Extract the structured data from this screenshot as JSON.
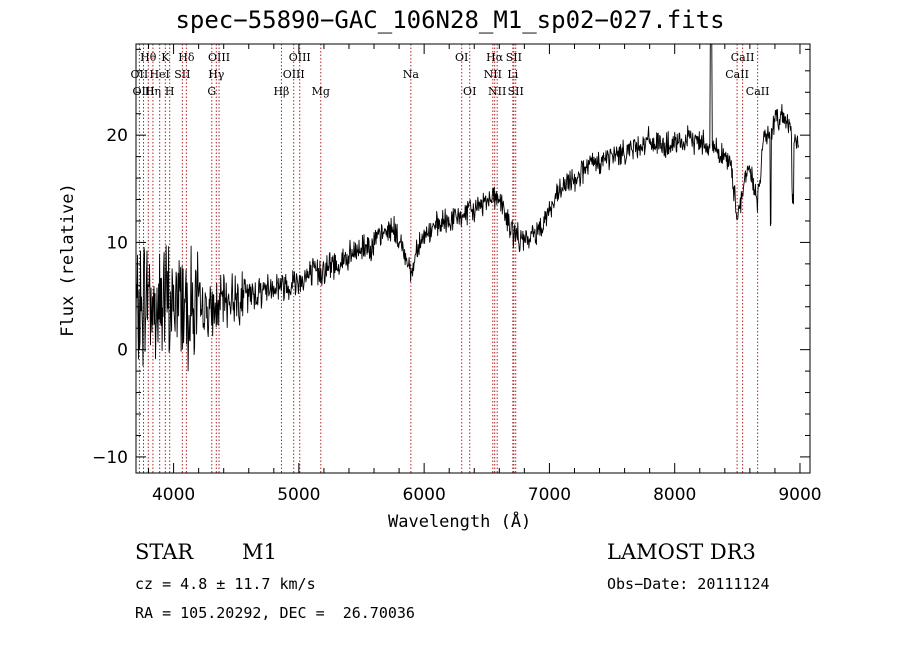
{
  "chart_data": {
    "type": "line",
    "title": "spec−55890−GAC_106N28_M1_sp02−027.fits",
    "xlabel": "Wavelength (Å)",
    "ylabel": "Flux (relative)",
    "xlim": [
      3700,
      9080
    ],
    "ylim": [
      -11.5,
      28.5
    ],
    "xticks": [
      4000,
      5000,
      6000,
      7000,
      8000,
      9000
    ],
    "yticks": [
      -10,
      0,
      10,
      20
    ],
    "series": [
      {
        "name": "flux",
        "x": [
          3700,
          3750,
          3800,
          3850,
          3900,
          3950,
          4000,
          4050,
          4100,
          4150,
          4200,
          4300,
          4400,
          4500,
          4600,
          4700,
          4800,
          4850,
          4900,
          5000,
          5100,
          5200,
          5300,
          5400,
          5500,
          5600,
          5700,
          5750,
          5800,
          5850,
          5900,
          5950,
          6000,
          6050,
          6100,
          6200,
          6300,
          6400,
          6450,
          6500,
          6550,
          6600,
          6650,
          6700,
          6750,
          6800,
          6900,
          7000,
          7100,
          7200,
          7300,
          7400,
          7500,
          7600,
          7700,
          7800,
          7900,
          8000,
          8100,
          8200,
          8300,
          8400,
          8450,
          8500,
          8530,
          8560,
          8600,
          8660,
          8700,
          8750,
          8800,
          8850,
          8900,
          8950,
          9000
        ],
        "y": [
          3,
          4,
          6,
          3,
          5,
          4,
          4,
          5,
          5,
          4,
          4,
          3.5,
          4.5,
          5,
          5,
          5.5,
          6,
          6,
          6,
          6.5,
          7,
          7.5,
          8,
          8.5,
          9.5,
          10,
          11,
          11.5,
          10,
          9,
          7,
          10,
          10.5,
          11,
          11.5,
          12,
          12.5,
          13,
          13.5,
          14,
          14.5,
          14,
          12.5,
          11,
          10.5,
          10,
          11,
          13,
          15,
          16,
          17,
          17.5,
          18,
          18.5,
          19,
          19.5,
          19,
          19,
          19.5,
          19.5,
          19,
          18,
          17,
          12.5,
          14,
          16,
          17,
          13.5,
          19,
          20,
          21,
          22,
          21.5,
          20,
          18
        ]
      }
    ],
    "spectral_lines": [
      {
        "name": "Hθ",
        "wavelength": 3798,
        "row": 1
      },
      {
        "name": "OII",
        "wavelength": 3727,
        "row": 2
      },
      {
        "name": "OIII",
        "wavelength": 3760,
        "row": 3
      },
      {
        "name": "K",
        "wavelength": 3934,
        "row": 1
      },
      {
        "name": "HeI",
        "wavelength": 3889,
        "row": 2
      },
      {
        "name": "Hη",
        "wavelength": 3835,
        "row": 3
      },
      {
        "name": "H",
        "wavelength": 3969,
        "row": 3
      },
      {
        "name": "SII",
        "wavelength": 4070,
        "row": 2
      },
      {
        "name": "Hδ",
        "wavelength": 4102,
        "row": 1
      },
      {
        "name": "OIII",
        "wavelength": 4363,
        "row": 1
      },
      {
        "name": "Hγ",
        "wavelength": 4341,
        "row": 2
      },
      {
        "name": "G",
        "wavelength": 4305,
        "row": 3
      },
      {
        "name": "OIII",
        "wavelength": 5007,
        "row": 1
      },
      {
        "name": "OIII",
        "wavelength": 4959,
        "row": 2
      },
      {
        "name": "Hβ",
        "wavelength": 4861,
        "row": 3
      },
      {
        "name": "Mg",
        "wavelength": 5175,
        "row": 3
      },
      {
        "name": "Na",
        "wavelength": 5894,
        "row": 2
      },
      {
        "name": "OI",
        "wavelength": 6300,
        "row": 1
      },
      {
        "name": "OI",
        "wavelength": 6364,
        "row": 3
      },
      {
        "name": "Hα",
        "wavelength": 6563,
        "row": 1
      },
      {
        "name": "NII",
        "wavelength": 6548,
        "row": 2
      },
      {
        "name": "NII",
        "wavelength": 6583,
        "row": 3
      },
      {
        "name": "SII",
        "wavelength": 6716,
        "row": 1
      },
      {
        "name": "Li",
        "wavelength": 6708,
        "row": 2
      },
      {
        "name": "SII",
        "wavelength": 6731,
        "row": 3
      },
      {
        "name": "CaII",
        "wavelength": 8542,
        "row": 1
      },
      {
        "name": "CaII",
        "wavelength": 8498,
        "row": 2
      },
      {
        "name": "CaII",
        "wavelength": 8662,
        "row": 3
      }
    ]
  },
  "info": {
    "object_class": "STAR",
    "subclass": "M1",
    "survey": "LAMOST DR3",
    "cz_line": "cz = 4.8 ± 11.7 km/s",
    "obs_date_line": "Obs−Date: 20111124",
    "coords_line": "RA = 105.20292, DEC =  26.70036"
  }
}
